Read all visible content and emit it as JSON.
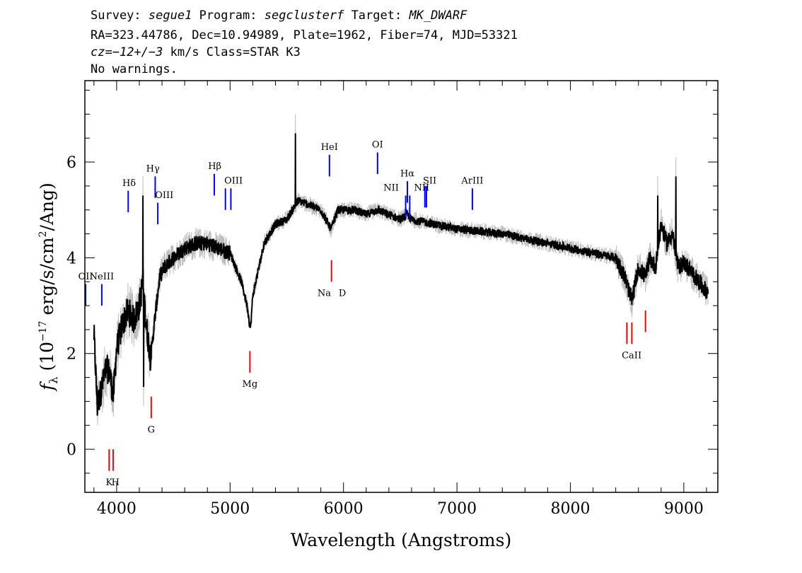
{
  "header": {
    "survey_label": "Survey:",
    "survey": "segue1",
    "program_label": "Program:",
    "program": "segclusterf",
    "target_label": "Target:",
    "target": "MK_DWARF",
    "line2": "RA=323.44786, Dec=10.94989, Plate=1962, Fiber=74, MJD=53321",
    "cz_label": "cz=",
    "cz_value": "−12+/−3",
    "cz_rest": " km/s Class=STAR K3",
    "warnings": "No warnings."
  },
  "chart_data": {
    "type": "line",
    "xlabel": "Wavelength (Angstroms)",
    "ylabel_parts": [
      "f",
      "λ",
      " (10",
      "−17",
      " erg/s/cm",
      "2",
      "/Ang)"
    ],
    "xlim": [
      3720,
      9300
    ],
    "ylim": [
      -0.9,
      7.7
    ],
    "x_ticks": [
      4000,
      5000,
      6000,
      7000,
      8000,
      9000
    ],
    "x_tick_labels": [
      "4000",
      "5000",
      "6000",
      "7000",
      "8000",
      "9000"
    ],
    "y_ticks": [
      0,
      2,
      4,
      6
    ],
    "y_tick_labels": [
      "0",
      "2",
      "4",
      "6"
    ],
    "flux_trend": {
      "x": [
        3800,
        3830,
        3850,
        3880,
        3910,
        3940,
        3970,
        4000,
        4050,
        4100,
        4150,
        4200,
        4230,
        4260,
        4300,
        4340,
        4380,
        4420,
        4460,
        4500,
        4600,
        4700,
        4800,
        4900,
        5000,
        5100,
        5150,
        5180,
        5200,
        5300,
        5400,
        5500,
        5600,
        5700,
        5800,
        5890,
        5950,
        6000,
        6100,
        6200,
        6300,
        6400,
        6500,
        6560,
        6600,
        6700,
        6800,
        7000,
        7200,
        7400,
        7600,
        7800,
        8000,
        8200,
        8400,
        8480,
        8542,
        8600,
        8662,
        8700,
        8750,
        8800,
        8850,
        8900,
        8950,
        9000,
        9100,
        9200
      ],
      "y": [
        2.4,
        0.9,
        1.1,
        1.4,
        1.7,
        1.6,
        1.1,
        2.1,
        2.6,
        2.9,
        2.7,
        3.0,
        3.5,
        2.6,
        1.9,
        2.8,
        3.6,
        3.8,
        3.9,
        4.0,
        4.2,
        4.3,
        4.3,
        4.2,
        4.1,
        3.5,
        3.0,
        2.5,
        3.2,
        4.3,
        4.7,
        4.8,
        5.2,
        5.1,
        5.0,
        4.6,
        5.0,
        5.0,
        5.0,
        4.9,
        5.0,
        4.9,
        4.8,
        4.9,
        4.8,
        4.75,
        4.7,
        4.6,
        4.55,
        4.5,
        4.4,
        4.3,
        4.2,
        4.1,
        4.0,
        3.6,
        3.1,
        3.8,
        3.6,
        4.0,
        3.8,
        4.7,
        4.3,
        4.5,
        3.8,
        3.9,
        3.6,
        3.3
      ]
    },
    "features": [
      {
        "x": 4233,
        "y": 5.3,
        "note": "spike"
      },
      {
        "x": 4238,
        "y": 1.3,
        "note": "dip"
      },
      {
        "x": 5577,
        "y": 6.6,
        "note": "sky line"
      },
      {
        "x": 8770,
        "y": 5.3,
        "note": "spike"
      },
      {
        "x": 8930,
        "y": 5.7,
        "note": "spike"
      }
    ],
    "emission_lines": [
      {
        "label": "OII",
        "x": 3727,
        "y0": 3.0,
        "y1": 3.45,
        "lx": 3727,
        "ly": 3.55
      },
      {
        "label": "NeIII",
        "x": 3869,
        "y0": 3.0,
        "y1": 3.45,
        "lx": 3869,
        "ly": 3.55
      },
      {
        "label": "Hδ",
        "x": 4102,
        "y0": 4.95,
        "y1": 5.4,
        "lx": 4110,
        "ly": 5.5
      },
      {
        "label": "Hγ",
        "x": 4340,
        "y0": 5.25,
        "y1": 5.7,
        "lx": 4320,
        "ly": 5.8
      },
      {
        "label": "OIII",
        "x": 4363,
        "y0": 4.7,
        "y1": 5.15,
        "lx": 4420,
        "ly": 5.25
      },
      {
        "label": "Hβ",
        "x": 4861,
        "y0": 5.3,
        "y1": 5.75,
        "lx": 4865,
        "ly": 5.85
      },
      {
        "label": "OIII",
        "x": 4959,
        "y0": 5.0,
        "y1": 5.45,
        "lx": 5030,
        "ly": 5.55
      },
      {
        "label": "OIII",
        "x": 5007,
        "y0": 5.0,
        "y1": 5.45,
        "lx": null,
        "ly": null
      },
      {
        "label": "HeI",
        "x": 5876,
        "y0": 5.7,
        "y1": 6.15,
        "lx": 5876,
        "ly": 6.25
      },
      {
        "label": "OI",
        "x": 6300,
        "y0": 5.75,
        "y1": 6.2,
        "lx": 6300,
        "ly": 6.3
      },
      {
        "label": "NII",
        "x": 6548,
        "y0": 4.85,
        "y1": 5.3,
        "lx": 6420,
        "ly": 5.4
      },
      {
        "label": "Hα",
        "x": 6563,
        "y0": 5.15,
        "y1": 5.6,
        "lx": 6563,
        "ly": 5.7
      },
      {
        "label": "NII",
        "x": 6584,
        "y0": 4.85,
        "y1": 5.3,
        "lx": 6690,
        "ly": 5.4
      },
      {
        "label": "SII",
        "x": 6717,
        "y0": 5.05,
        "y1": 5.5,
        "lx": 6760,
        "ly": 5.55
      },
      {
        "label": "SII",
        "x": 6731,
        "y0": 5.05,
        "y1": 5.5,
        "lx": null,
        "ly": null
      },
      {
        "label": "ArIII",
        "x": 7136,
        "y0": 5.0,
        "y1": 5.45,
        "lx": 7136,
        "ly": 5.55
      }
    ],
    "absorption_lines": [
      {
        "label": "K",
        "x": 3934,
        "y0": -0.45,
        "y1": 0.0,
        "lx": 3934,
        "ly": -0.75
      },
      {
        "label": "H",
        "x": 3969,
        "y0": -0.45,
        "y1": 0.0,
        "lx": 3990,
        "ly": -0.75
      },
      {
        "label": "G",
        "x": 4305,
        "y0": 0.65,
        "y1": 1.1,
        "lx": 4305,
        "ly": 0.35
      },
      {
        "label": "Mg",
        "x": 5175,
        "y0": 1.6,
        "y1": 2.05,
        "lx": 5175,
        "ly": 1.3
      },
      {
        "label": "Na",
        "x": 5894,
        "y0": 3.5,
        "y1": 3.95,
        "lx": 5830,
        "ly": 3.2
      },
      {
        "label": "D",
        "x": 5894,
        "y0": null,
        "y1": null,
        "lx": 5990,
        "ly": 3.2
      },
      {
        "label": "CaII",
        "x": 8498,
        "y0": 2.2,
        "y1": 2.65,
        "lx": 8540,
        "ly": 1.9
      },
      {
        "label": "CaII",
        "x": 8542,
        "y0": 2.2,
        "y1": 2.65,
        "lx": null,
        "ly": null
      },
      {
        "label": "CaII",
        "x": 8662,
        "y0": 2.45,
        "y1": 2.9,
        "lx": null,
        "ly": null
      }
    ],
    "colors": {
      "flux": "#000000",
      "noise": "#bdbdbd",
      "emission": "#0000ff",
      "absorption": "#ff0000",
      "axes": "#000000"
    },
    "grid": false,
    "legend": "none"
  }
}
